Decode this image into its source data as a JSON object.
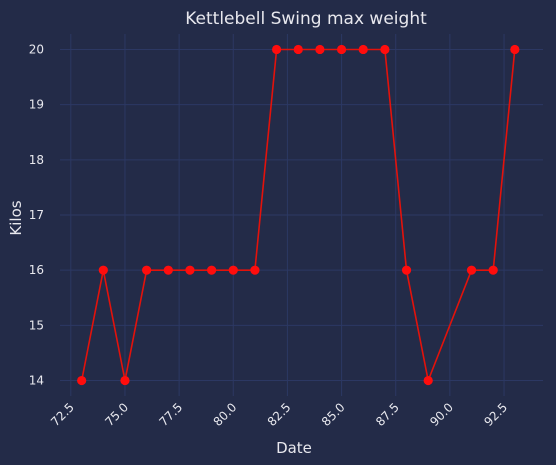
{
  "chart_data": {
    "type": "line",
    "title": "Kettlebell Swing max weight",
    "xlabel": "Date",
    "ylabel": "Kilos",
    "xlim": [
      72.0,
      94.3
    ],
    "ylim": [
      13.72,
      20.28
    ],
    "xticks": [
      "72.5",
      "75.0",
      "77.5",
      "80.0",
      "82.5",
      "85.0",
      "87.5",
      "90.0",
      "92.5"
    ],
    "yticks": [
      "14",
      "15",
      "16",
      "17",
      "18",
      "19",
      "20"
    ],
    "grid": true,
    "series": [
      {
        "x": [
          73,
          74,
          75,
          76,
          77,
          78,
          79,
          80,
          81,
          82,
          83,
          84,
          85,
          86,
          87,
          88,
          89,
          91,
          92,
          93
        ],
        "y": [
          14,
          16,
          14,
          16,
          16,
          16,
          16,
          16,
          16,
          20,
          20,
          20,
          20,
          20,
          20,
          16,
          14,
          16,
          16,
          20
        ]
      }
    ]
  },
  "colors": {
    "background": "#232b48",
    "grid": "#2c3863",
    "line": "#e3120b",
    "marker": "#ff0d0d"
  }
}
